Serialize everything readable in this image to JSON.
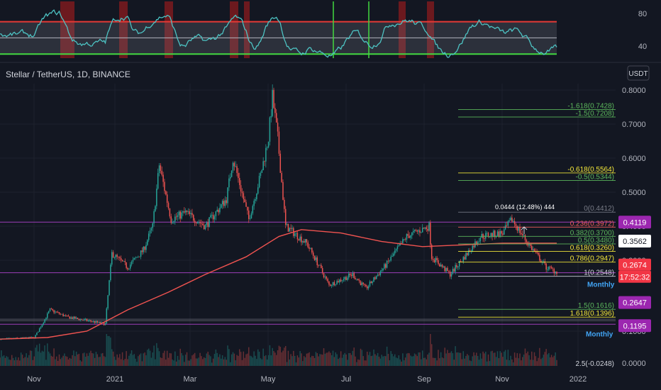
{
  "header": {
    "symbol_title": "Stellar / TetherUS, 1D, BINANCE",
    "currency_button": "USDT"
  },
  "colors": {
    "background": "#131722",
    "grid": "#1e222d",
    "axis_text": "#b2b5be",
    "up_candle": "#26a69a",
    "down_candle": "#ef5350",
    "ma_line": "#f05350",
    "rsi_line": "#4dc3c3",
    "rsi_upper": "#e53935",
    "rsi_lower": "#43d840",
    "fib_white": "#d1d4dc",
    "fib_yellow": "#f5e93a",
    "fib_green": "#5cb85c",
    "fib_red": "#f05a5a",
    "fib_cyan": "#4fc3d9",
    "monthly_line": "#9c3db8",
    "monthly_zone": "#5d606b",
    "monthly_text": "#42a5f5"
  },
  "rsi_panel": {
    "y_ticks": [
      "80",
      "40"
    ],
    "upper_level": 70,
    "mid_level": 50,
    "lower_level": 30,
    "ylim": [
      25,
      95
    ]
  },
  "chart_data": {
    "type": "candlestick",
    "y_axis_ticks": [
      "0.8000",
      "0.7000",
      "0.6000",
      "0.5000",
      "0.4000",
      "0.3000",
      "0.1000",
      "0.0000"
    ],
    "x_axis_labels": [
      "Nov",
      "2021",
      "Mar",
      "May",
      "Jul",
      "Sep",
      "Nov",
      "2022"
    ],
    "ylim": [
      0,
      0.82
    ],
    "price_path": [
      [
        "2020-10-15",
        0.075
      ],
      [
        "2020-11-10",
        0.08
      ],
      [
        "2020-11-22",
        0.16
      ],
      [
        "2020-12-05",
        0.14
      ],
      [
        "2020-12-20",
        0.13
      ],
      [
        "2021-01-03",
        0.12
      ],
      [
        "2021-01-08",
        0.32
      ],
      [
        "2021-01-20",
        0.28
      ],
      [
        "2021-02-01",
        0.33
      ],
      [
        "2021-02-08",
        0.4
      ],
      [
        "2021-02-13",
        0.58
      ],
      [
        "2021-02-22",
        0.42
      ],
      [
        "2021-03-05",
        0.44
      ],
      [
        "2021-03-20",
        0.4
      ],
      [
        "2021-04-05",
        0.48
      ],
      [
        "2021-04-10",
        0.6
      ],
      [
        "2021-04-22",
        0.42
      ],
      [
        "2021-05-01",
        0.55
      ],
      [
        "2021-05-07",
        0.66
      ],
      [
        "2021-05-10",
        0.78
      ],
      [
        "2021-05-14",
        0.66
      ],
      [
        "2021-05-20",
        0.4
      ],
      [
        "2021-06-05",
        0.35
      ],
      [
        "2021-06-22",
        0.23
      ],
      [
        "2021-07-10",
        0.26
      ],
      [
        "2021-07-20",
        0.22
      ],
      [
        "2021-08-05",
        0.29
      ],
      [
        "2021-08-20",
        0.37
      ],
      [
        "2021-09-06",
        0.4
      ],
      [
        "2021-09-08",
        0.31
      ],
      [
        "2021-09-22",
        0.26
      ],
      [
        "2021-10-05",
        0.32
      ],
      [
        "2021-10-15",
        0.37
      ],
      [
        "2021-11-01",
        0.38
      ],
      [
        "2021-11-08",
        0.42
      ],
      [
        "2021-11-20",
        0.35
      ],
      [
        "2021-12-04",
        0.28
      ],
      [
        "2021-12-12",
        0.2674
      ]
    ],
    "moving_average": [
      [
        "2020-10-15",
        0.075
      ],
      [
        "2020-11-20",
        0.08
      ],
      [
        "2020-12-20",
        0.1
      ],
      [
        "2021-01-20",
        0.16
      ],
      [
        "2021-02-20",
        0.21
      ],
      [
        "2021-03-20",
        0.26
      ],
      [
        "2021-04-20",
        0.31
      ],
      [
        "2021-05-15",
        0.37
      ],
      [
        "2021-06-01",
        0.39
      ],
      [
        "2021-07-01",
        0.38
      ],
      [
        "2021-08-01",
        0.355
      ],
      [
        "2021-09-01",
        0.34
      ],
      [
        "2021-10-01",
        0.345
      ],
      [
        "2021-11-01",
        0.35
      ],
      [
        "2021-12-12",
        0.35
      ]
    ],
    "fib_levels": [
      {
        "label": "-1.618(0.7428)",
        "value": 0.7428,
        "color": "#5cb85c"
      },
      {
        "label": "-1.5(0.7208)",
        "value": 0.7208,
        "color": "#5cb85c"
      },
      {
        "label": "-0.618(0.5564)",
        "value": 0.5564,
        "color": "#f5e93a"
      },
      {
        "label": "-0.5(0.5344)",
        "value": 0.5344,
        "color": "#5cb85c"
      },
      {
        "label": "0(0.4412)",
        "value": 0.4412,
        "color": "#787b86"
      },
      {
        "label": "0.236(0.3972)",
        "value": 0.3972,
        "color": "#f05a5a"
      },
      {
        "label": "0.382(0.3700)",
        "value": 0.37,
        "color": "#5cb85c"
      },
      {
        "label": "0.5(0.3480)",
        "value": 0.348,
        "color": "#5cb85c"
      },
      {
        "label": "0.618(0.3260)",
        "value": 0.326,
        "color": "#f5e93a"
      },
      {
        "label": "0.786(0.2947)",
        "value": 0.2947,
        "color": "#f5e93a"
      },
      {
        "label": "1(0.2548)",
        "value": 0.2548,
        "color": "#d1d4dc"
      },
      {
        "label": "1.5(0.1616)",
        "value": 0.1616,
        "color": "#5cb85c"
      },
      {
        "label": "1.618(0.1396)",
        "value": 0.1396,
        "color": "#f5e93a"
      },
      {
        "label": "2.5(-0.0248)",
        "value": -0.0248,
        "color": "#d1d4dc"
      }
    ],
    "measure_annotation": "0.0444 (12.48%) 444",
    "monthly_labels": [
      "Monthly",
      "Monthly"
    ],
    "monthly_levels": [
      0.4119,
      0.2647,
      0.1195
    ],
    "price_tags": [
      {
        "value": "0.4119",
        "color": "#9c27b0"
      },
      {
        "value": "0.3562",
        "color": "#ffffff",
        "text_color": "#131722"
      },
      {
        "value": "0.2674",
        "color": "#f23645"
      },
      {
        "value": "17:52:32",
        "color": "#f23645"
      },
      {
        "value": "0.2647",
        "color": "#9c27b0"
      },
      {
        "value": "0.1195",
        "color": "#9c27b0"
      }
    ],
    "current_price": 0.2674,
    "countdown": "17:52:32",
    "last_ma": 0.3562
  }
}
